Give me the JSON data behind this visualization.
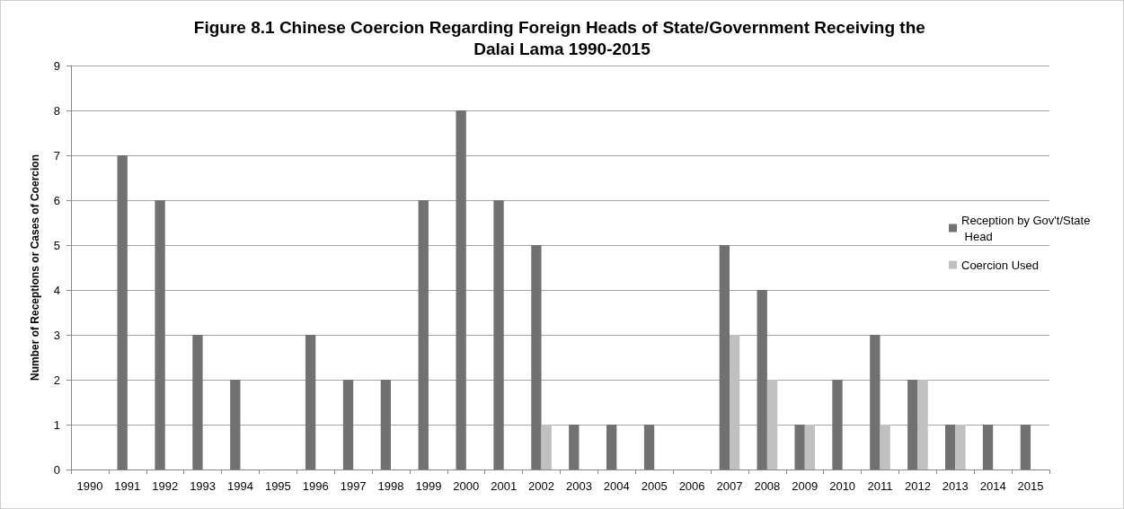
{
  "chart_data": {
    "type": "bar",
    "title": "Figure 8.1 Chinese Coercion Regarding Foreign Heads of State/Government Receiving the Dalai Lama 1990-2015",
    "ylabel": "Number of Receptions or Cases of Coercion",
    "categories": [
      "1990",
      "1991",
      "1992",
      "1993",
      "1994",
      "1995",
      "1996",
      "1997",
      "1998",
      "1999",
      "2000",
      "2001",
      "2002",
      "2003",
      "2004",
      "2005",
      "2006",
      "2007",
      "2008",
      "2009",
      "2010",
      "2011",
      "2012",
      "2013",
      "2014",
      "2015"
    ],
    "series": [
      {
        "name": "Reception by Gov't/State Head",
        "color": "#717171",
        "values": [
          0,
          7,
          6,
          3,
          2,
          0,
          3,
          2,
          2,
          6,
          8,
          6,
          5,
          1,
          1,
          1,
          0,
          5,
          4,
          1,
          2,
          3,
          2,
          1,
          1,
          1
        ]
      },
      {
        "name": "Coercion Used",
        "color": "#c0c0c0",
        "values": [
          0,
          0,
          0,
          0,
          0,
          0,
          0,
          0,
          0,
          0,
          0,
          0,
          1,
          0,
          0,
          0,
          0,
          3,
          2,
          1,
          0,
          1,
          2,
          1,
          0,
          0
        ]
      }
    ],
    "ylim": [
      0,
      9
    ],
    "yticks": [
      0,
      1,
      2,
      3,
      4,
      5,
      6,
      7,
      8,
      9
    ],
    "grid": "y",
    "legend": "right"
  }
}
